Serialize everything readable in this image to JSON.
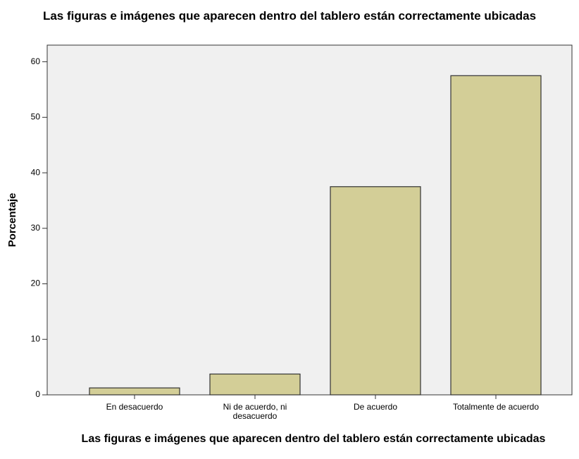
{
  "chart_data": {
    "type": "bar",
    "title": "Las figuras e imágenes que aparecen dentro del tablero están correctamente ubicadas",
    "x_label": "Las figuras e imágenes que aparecen dentro del tablero están correctamente ubicadas",
    "y_label": "Porcentaje",
    "categories": [
      "En desacuerdo",
      "Ni de acuerdo, ni desacuerdo",
      "De acuerdo",
      "Totalmente de acuerdo"
    ],
    "values": [
      1.25,
      3.75,
      37.5,
      57.5
    ],
    "color": "#d3ce97",
    "ylim": [
      0,
      63
    ],
    "yticks": [
      0,
      10,
      20,
      30,
      40,
      50,
      60
    ],
    "grid": false
  }
}
